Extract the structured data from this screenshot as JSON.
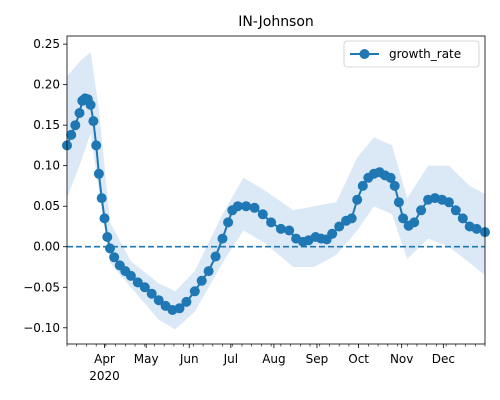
{
  "chart_data": {
    "type": "line",
    "title": "IN-Johnson",
    "xlabel": "",
    "ylabel": "",
    "x_range": [
      "2020-03-05",
      "2020-12-31"
    ],
    "ylim": [
      -0.12,
      0.26
    ],
    "yticks": [
      -0.1,
      -0.05,
      0.0,
      0.05,
      0.1,
      0.15,
      0.2,
      0.25
    ],
    "ytick_labels": [
      "−0.10",
      "−0.05",
      "0.00",
      "0.05",
      "0.10",
      "0.15",
      "0.20",
      "0.25"
    ],
    "xticks": [
      {
        "date": "2020-04-01",
        "label": "Apr"
      },
      {
        "date": "2020-05-01",
        "label": "May"
      },
      {
        "date": "2020-06-01",
        "label": "Jun"
      },
      {
        "date": "2020-07-01",
        "label": "Jul"
      },
      {
        "date": "2020-08-01",
        "label": "Aug"
      },
      {
        "date": "2020-09-01",
        "label": "Sep"
      },
      {
        "date": "2020-10-01",
        "label": "Oct"
      },
      {
        "date": "2020-11-01",
        "label": "Nov"
      },
      {
        "date": "2020-12-01",
        "label": "Dec"
      }
    ],
    "year_label": {
      "date": "2020-04-01",
      "label": "2020"
    },
    "reference_line": {
      "y": 0,
      "style": "dashed"
    },
    "grid": false,
    "legend_position": "upper right",
    "series": [
      {
        "name": "growth_rate",
        "color": "#1f77b4",
        "band_color": "#dbe8f5",
        "points": [
          [
            "2020-03-05",
            0.125
          ],
          [
            "2020-03-08",
            0.138
          ],
          [
            "2020-03-11",
            0.15
          ],
          [
            "2020-03-14",
            0.165
          ],
          [
            "2020-03-16",
            0.18
          ],
          [
            "2020-03-18",
            0.183
          ],
          [
            "2020-03-20",
            0.182
          ],
          [
            "2020-03-22",
            0.175
          ],
          [
            "2020-03-24",
            0.155
          ],
          [
            "2020-03-26",
            0.125
          ],
          [
            "2020-03-28",
            0.09
          ],
          [
            "2020-03-30",
            0.06
          ],
          [
            "2020-04-01",
            0.035
          ],
          [
            "2020-04-03",
            0.012
          ],
          [
            "2020-04-05",
            -0.002
          ],
          [
            "2020-04-08",
            -0.013
          ],
          [
            "2020-04-12",
            -0.023
          ],
          [
            "2020-04-16",
            -0.03
          ],
          [
            "2020-04-20",
            -0.036
          ],
          [
            "2020-04-25",
            -0.044
          ],
          [
            "2020-04-30",
            -0.05
          ],
          [
            "2020-05-05",
            -0.058
          ],
          [
            "2020-05-10",
            -0.066
          ],
          [
            "2020-05-15",
            -0.073
          ],
          [
            "2020-05-20",
            -0.078
          ],
          [
            "2020-05-25",
            -0.076
          ],
          [
            "2020-05-30",
            -0.068
          ],
          [
            "2020-06-05",
            -0.055
          ],
          [
            "2020-06-10",
            -0.042
          ],
          [
            "2020-06-15",
            -0.03
          ],
          [
            "2020-06-20",
            -0.012
          ],
          [
            "2020-06-25",
            0.01
          ],
          [
            "2020-06-29",
            0.03
          ],
          [
            "2020-07-02",
            0.045
          ],
          [
            "2020-07-06",
            0.05
          ],
          [
            "2020-07-12",
            0.05
          ],
          [
            "2020-07-18",
            0.048
          ],
          [
            "2020-07-24",
            0.04
          ],
          [
            "2020-07-30",
            0.03
          ],
          [
            "2020-08-06",
            0.022
          ],
          [
            "2020-08-12",
            0.02
          ],
          [
            "2020-08-17",
            0.01
          ],
          [
            "2020-08-22",
            0.006
          ],
          [
            "2020-08-26",
            0.008
          ],
          [
            "2020-08-31",
            0.012
          ],
          [
            "2020-09-04",
            0.01
          ],
          [
            "2020-09-08",
            0.009
          ],
          [
            "2020-09-12",
            0.016
          ],
          [
            "2020-09-17",
            0.025
          ],
          [
            "2020-09-22",
            0.032
          ],
          [
            "2020-09-26",
            0.035
          ],
          [
            "2020-09-30",
            0.058
          ],
          [
            "2020-10-04",
            0.075
          ],
          [
            "2020-10-08",
            0.085
          ],
          [
            "2020-10-12",
            0.09
          ],
          [
            "2020-10-16",
            0.092
          ],
          [
            "2020-10-20",
            0.088
          ],
          [
            "2020-10-24",
            0.085
          ],
          [
            "2020-10-27",
            0.075
          ],
          [
            "2020-10-30",
            0.055
          ],
          [
            "2020-11-02",
            0.035
          ],
          [
            "2020-11-06",
            0.026
          ],
          [
            "2020-11-10",
            0.03
          ],
          [
            "2020-11-15",
            0.045
          ],
          [
            "2020-11-20",
            0.058
          ],
          [
            "2020-11-25",
            0.06
          ],
          [
            "2020-11-30",
            0.058
          ],
          [
            "2020-12-05",
            0.055
          ],
          [
            "2020-12-10",
            0.045
          ],
          [
            "2020-12-15",
            0.035
          ],
          [
            "2020-12-20",
            0.025
          ],
          [
            "2020-12-25",
            0.022
          ],
          [
            "2020-12-31",
            0.018
          ]
        ],
        "band": [
          [
            "2020-03-05",
            0.06,
            0.21
          ],
          [
            "2020-03-15",
            0.105,
            0.23
          ],
          [
            "2020-03-22",
            0.14,
            0.24
          ],
          [
            "2020-03-28",
            0.07,
            0.17
          ],
          [
            "2020-04-05",
            -0.02,
            0.03
          ],
          [
            "2020-04-20",
            -0.05,
            -0.018
          ],
          [
            "2020-05-10",
            -0.09,
            -0.045
          ],
          [
            "2020-05-22",
            -0.102,
            -0.055
          ],
          [
            "2020-06-05",
            -0.08,
            -0.03
          ],
          [
            "2020-06-25",
            -0.02,
            0.04
          ],
          [
            "2020-07-10",
            0.02,
            0.085
          ],
          [
            "2020-07-25",
            0.005,
            0.07
          ],
          [
            "2020-08-15",
            -0.025,
            0.045
          ],
          [
            "2020-08-30",
            -0.025,
            0.05
          ],
          [
            "2020-09-15",
            -0.01,
            0.055
          ],
          [
            "2020-09-30",
            0.02,
            0.11
          ],
          [
            "2020-10-12",
            0.05,
            0.135
          ],
          [
            "2020-10-25",
            0.04,
            0.125
          ],
          [
            "2020-11-05",
            -0.015,
            0.06
          ],
          [
            "2020-11-20",
            0.01,
            0.1
          ],
          [
            "2020-12-05",
            0.0,
            0.1
          ],
          [
            "2020-12-20",
            -0.02,
            0.075
          ],
          [
            "2020-12-31",
            -0.035,
            0.065
          ]
        ]
      }
    ]
  }
}
